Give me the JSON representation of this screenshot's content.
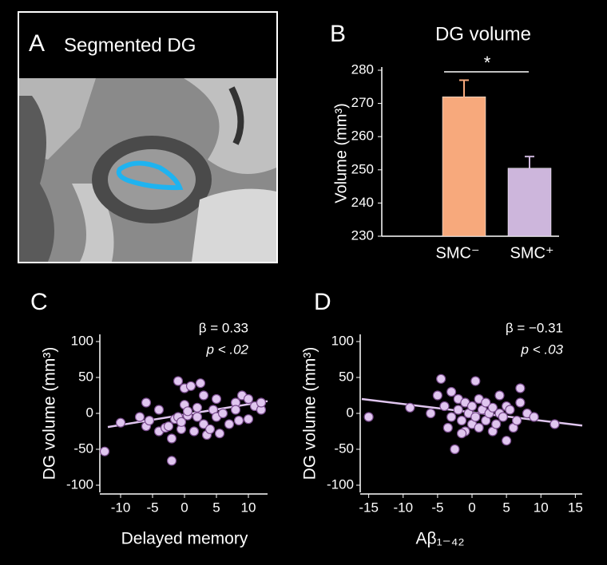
{
  "panel_a": {
    "letter": "A",
    "title": "Segmented DG"
  },
  "chart_data": [
    {
      "type": "bar",
      "panel": "B",
      "title": "DG volume",
      "ylabel": "Volume (mm³)",
      "categories": [
        "SMC⁻",
        "SMC⁺"
      ],
      "values": [
        272,
        250.5
      ],
      "errors": [
        5,
        3.5
      ],
      "colors": [
        "#f7a97c",
        "#cdb6dc"
      ],
      "significance": "*",
      "ylim": [
        230,
        280
      ],
      "yticks": [
        230,
        240,
        250,
        260,
        270,
        280
      ]
    },
    {
      "type": "scatter",
      "panel": "C",
      "xlabel": "Delayed memory",
      "ylabel": "DG volume (mm³)",
      "annotations": [
        "β = 0.33",
        "p < .02"
      ],
      "color": "#e0c6ef",
      "x": [
        -12.5,
        -10,
        -7,
        -6,
        -6,
        -5.5,
        -4,
        -4,
        -3,
        -2.5,
        -2,
        -2,
        -1.5,
        -1,
        -1,
        -0.5,
        -0.5,
        0,
        0,
        0.5,
        0.5,
        1,
        1.5,
        2,
        2,
        2.5,
        3,
        3,
        3.5,
        4,
        4.5,
        5,
        5,
        5.5,
        6,
        7,
        8,
        8,
        8.5,
        9,
        10,
        10,
        11,
        12,
        12
      ],
      "values": [
        -53,
        -13,
        -5,
        15,
        -18,
        -10,
        5,
        -25,
        -20,
        -18,
        -66,
        -35,
        -8,
        45,
        -5,
        -22,
        -12,
        35,
        12,
        -3,
        3,
        38,
        -25,
        8,
        -5,
        42,
        25,
        -15,
        -30,
        -22,
        5,
        20,
        -5,
        -28,
        0,
        -15,
        15,
        5,
        -10,
        25,
        20,
        -8,
        10,
        5,
        15
      ],
      "fit": {
        "x": [
          -12,
          13
        ],
        "y": [
          -19,
          17
        ]
      },
      "xlim": [
        -13,
        13
      ],
      "xticks": [
        -10,
        -5,
        0,
        5,
        10
      ],
      "ylim": [
        -110,
        110
      ],
      "yticks": [
        -100,
        -50,
        0,
        50,
        100
      ]
    },
    {
      "type": "scatter",
      "panel": "D",
      "xlabel": "Aβ₁₋₄₂",
      "ylabel": "DG volume (mm³)",
      "annotations": [
        "β = −0.31",
        "p < .03"
      ],
      "color": "#e0c6ef",
      "x": [
        -15,
        -9,
        -5,
        -4.5,
        -4,
        -3.5,
        -3,
        -3,
        -2.5,
        -2,
        -2,
        -1.5,
        -1,
        -1,
        -0.5,
        0,
        0,
        0.5,
        0.5,
        1,
        1,
        1.5,
        2,
        2,
        2.5,
        3,
        3,
        3.5,
        4,
        4,
        4.5,
        5,
        5,
        5.5,
        6,
        6.5,
        7,
        7,
        8,
        9,
        12,
        -6,
        -1.5
      ],
      "values": [
        -5,
        8,
        25,
        48,
        10,
        -20,
        -5,
        30,
        -50,
        5,
        20,
        -10,
        15,
        -25,
        0,
        10,
        -15,
        45,
        -5,
        20,
        -20,
        5,
        -10,
        15,
        0,
        -25,
        8,
        -15,
        25,
        0,
        -5,
        -38,
        10,
        5,
        -20,
        -10,
        35,
        15,
        0,
        -5,
        -15,
        0,
        -28
      ],
      "fit": {
        "x": [
          -16,
          16
        ],
        "y": [
          20,
          -17
        ]
      },
      "xlim": [
        -16,
        16
      ],
      "xticks": [
        -15,
        -10,
        -5,
        0,
        5,
        10,
        15
      ],
      "ylim": [
        -110,
        110
      ],
      "yticks": [
        -100,
        -50,
        0,
        50,
        100
      ]
    }
  ]
}
